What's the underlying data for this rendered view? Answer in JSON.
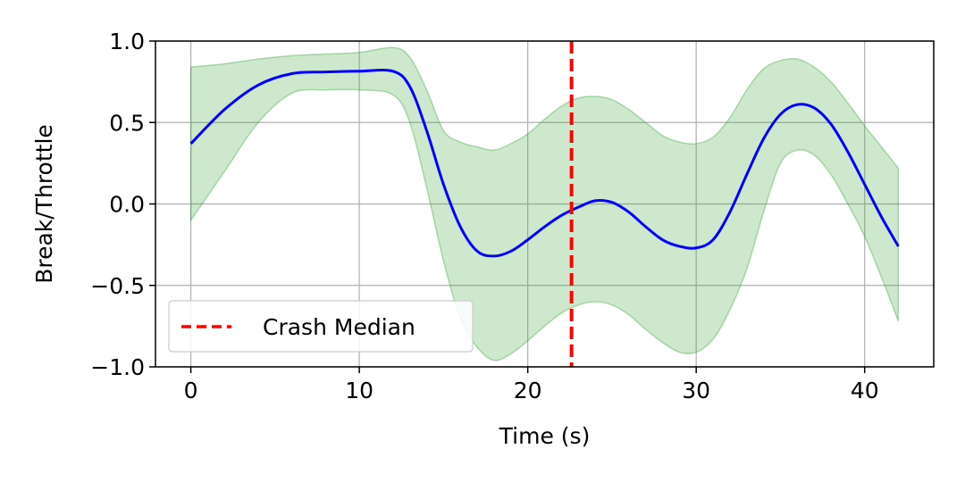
{
  "chart_data": {
    "type": "line",
    "title": "",
    "xlabel": "Time (s)",
    "ylabel": "Break/Throttle",
    "xlim": [
      -2.1,
      44.1
    ],
    "ylim": [
      -1.0,
      1.0
    ],
    "grid": true,
    "x_ticks": [
      0,
      10,
      20,
      30,
      40
    ],
    "x_tick_labels": [
      "0",
      "10",
      "20",
      "30",
      "40"
    ],
    "y_ticks": [
      -1.0,
      -0.5,
      0.0,
      0.5,
      1.0
    ],
    "y_tick_labels": [
      "−1.0",
      "−0.5",
      "0.0",
      "0.5",
      "1.0"
    ],
    "series": [
      {
        "name": "",
        "style": "solid",
        "color": "#0000ff",
        "x": [
          0,
          2,
          4,
          6,
          8,
          10,
          12,
          13,
          14,
          15,
          16,
          17,
          18,
          19,
          20,
          21,
          22,
          23,
          24,
          25,
          26,
          27,
          28,
          29,
          30,
          31,
          32,
          33,
          34,
          35,
          36,
          37,
          38,
          39,
          40,
          41,
          42
        ],
        "y": [
          0.37,
          0.58,
          0.73,
          0.8,
          0.81,
          0.815,
          0.815,
          0.72,
          0.45,
          0.12,
          -0.14,
          -0.29,
          -0.32,
          -0.29,
          -0.22,
          -0.14,
          -0.07,
          -0.02,
          0.02,
          0.01,
          -0.05,
          -0.14,
          -0.22,
          -0.26,
          -0.27,
          -0.22,
          -0.05,
          0.18,
          0.4,
          0.55,
          0.61,
          0.59,
          0.49,
          0.32,
          0.12,
          -0.08,
          -0.26
        ]
      }
    ],
    "band": {
      "color": "#2ca02c",
      "opacity": 0.24,
      "x": [
        0,
        2,
        4,
        6,
        8,
        10,
        12,
        13,
        14,
        15,
        16,
        17,
        18,
        19,
        20,
        21,
        22,
        23,
        24,
        25,
        26,
        27,
        28,
        29,
        30,
        31,
        32,
        33,
        34,
        35,
        36,
        37,
        38,
        39,
        40,
        41,
        42
      ],
      "upper": [
        0.84,
        0.86,
        0.89,
        0.91,
        0.92,
        0.93,
        0.96,
        0.9,
        0.7,
        0.45,
        0.38,
        0.35,
        0.33,
        0.37,
        0.43,
        0.52,
        0.6,
        0.65,
        0.66,
        0.64,
        0.58,
        0.5,
        0.42,
        0.38,
        0.37,
        0.41,
        0.53,
        0.7,
        0.83,
        0.88,
        0.89,
        0.84,
        0.75,
        0.62,
        0.48,
        0.35,
        0.22
      ],
      "lower": [
        -0.1,
        0.2,
        0.5,
        0.68,
        0.7,
        0.7,
        0.67,
        0.5,
        0.1,
        -0.35,
        -0.7,
        -0.88,
        -0.96,
        -0.92,
        -0.84,
        -0.75,
        -0.67,
        -0.62,
        -0.6,
        -0.62,
        -0.68,
        -0.77,
        -0.85,
        -0.91,
        -0.91,
        -0.83,
        -0.65,
        -0.4,
        -0.05,
        0.25,
        0.33,
        0.3,
        0.18,
        0.0,
        -0.2,
        -0.45,
        -0.72
      ]
    },
    "vline": {
      "name": "Crash Median",
      "x": 22.6,
      "color": "#ff0000",
      "style": "dashed"
    },
    "legend": {
      "placement": "lower-left",
      "entries": [
        "Crash Median"
      ]
    }
  }
}
